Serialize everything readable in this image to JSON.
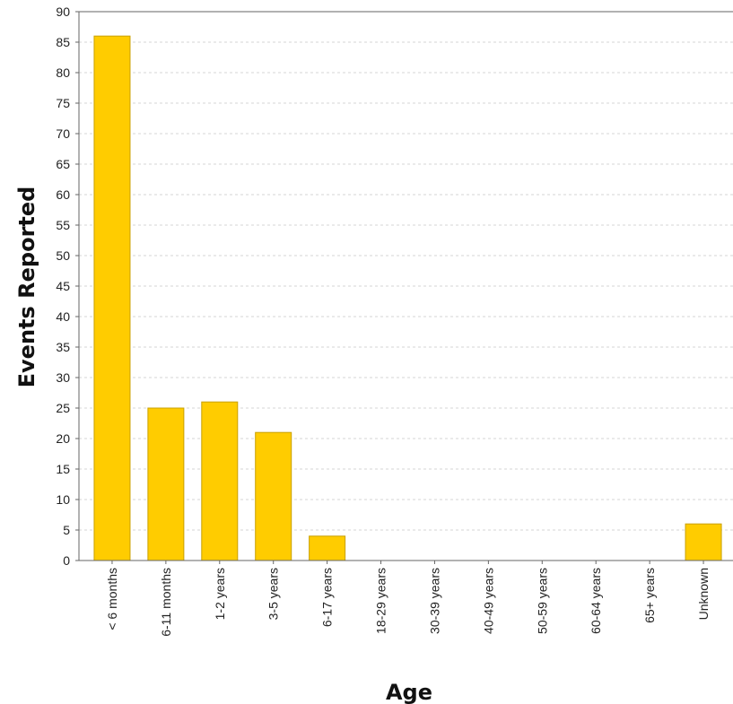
{
  "chart_data": {
    "type": "bar",
    "title": "",
    "xlabel": "Age",
    "ylabel": "Events Reported",
    "categories": [
      "< 6 months",
      "6-11 months",
      "1-2 years",
      "3-5 years",
      "6-17 years",
      "18-29 years",
      "30-39 years",
      "40-49 years",
      "50-59 years",
      "60-64 years",
      "65+ years",
      "Unknown"
    ],
    "values": [
      86,
      25,
      26,
      21,
      4,
      0,
      0,
      0,
      0,
      0,
      0,
      6
    ],
    "ylim": [
      0,
      90
    ],
    "yticks": [
      "0",
      "5",
      "10",
      "15",
      "20",
      "25",
      "30",
      "35",
      "40",
      "45",
      "50",
      "55",
      "60",
      "65",
      "70",
      "75",
      "80",
      "85",
      "90"
    ],
    "grid": true,
    "bar_color": "#FFCC00",
    "bar_edge_color": "#C9A000",
    "grid_color": "#D6D6D6"
  }
}
